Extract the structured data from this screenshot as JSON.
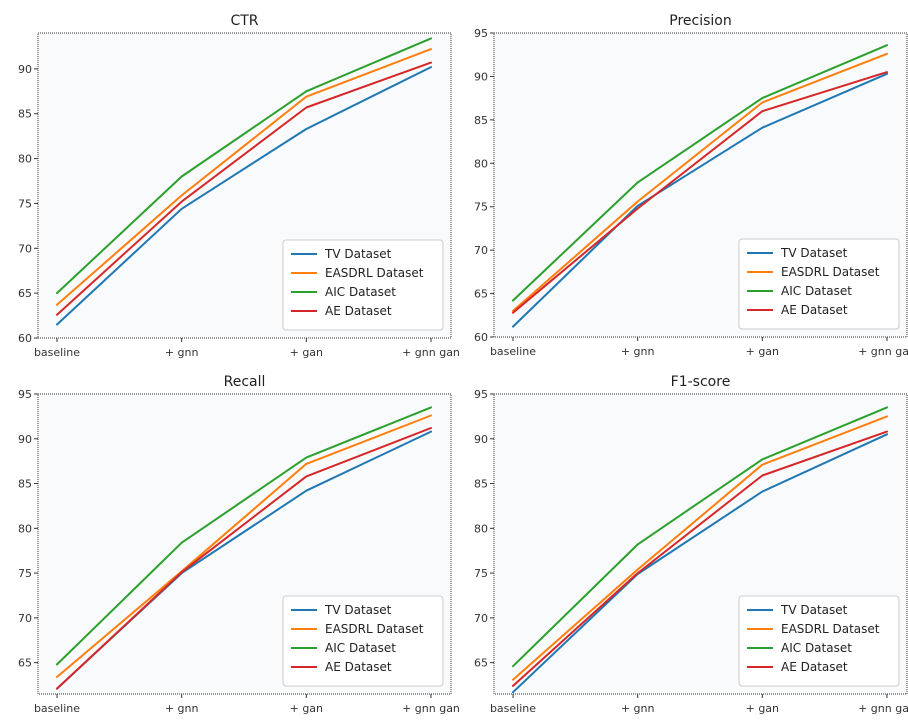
{
  "chart_data": [
    {
      "type": "line",
      "title": "CTR",
      "xlabel": "",
      "ylabel": "",
      "categories": [
        "baseline",
        "+ gnn",
        "+ gan",
        "+ gnn gan"
      ],
      "ylim": [
        60,
        94
      ],
      "yticks": [
        60,
        65,
        70,
        75,
        80,
        85,
        90
      ],
      "grid": false,
      "legend_position": "lower-right",
      "series": [
        {
          "name": "TV Dataset",
          "color": "#1f77b4",
          "values": [
            61.5,
            74.4,
            83.3,
            90.2
          ]
        },
        {
          "name": "EASDRL Dataset",
          "color": "#ff7f0e",
          "values": [
            63.7,
            75.9,
            86.9,
            92.2
          ]
        },
        {
          "name": "AIC Dataset",
          "color": "#2ca02c",
          "values": [
            65.0,
            78.0,
            87.5,
            93.4
          ]
        },
        {
          "name": "AE Dataset",
          "color": "#d62728",
          "values": [
            62.6,
            75.2,
            85.7,
            90.7
          ]
        }
      ]
    },
    {
      "type": "line",
      "title": "Precision",
      "xlabel": "",
      "ylabel": "",
      "categories": [
        "baseline",
        "+ gnn",
        "+ gan",
        "+ gnn gan"
      ],
      "ylim": [
        60,
        95
      ],
      "yticks": [
        60,
        65,
        70,
        75,
        80,
        85,
        90,
        95
      ],
      "grid": false,
      "legend_position": "lower-right",
      "series": [
        {
          "name": "TV Dataset",
          "color": "#1f77b4",
          "values": [
            61.2,
            75.1,
            84.1,
            90.3
          ]
        },
        {
          "name": "EASDRL Dataset",
          "color": "#ff7f0e",
          "values": [
            63.0,
            75.6,
            87.0,
            92.6
          ]
        },
        {
          "name": "AIC Dataset",
          "color": "#2ca02c",
          "values": [
            64.2,
            77.8,
            87.5,
            93.6
          ]
        },
        {
          "name": "AE Dataset",
          "color": "#d62728",
          "values": [
            62.8,
            74.8,
            86.0,
            90.5
          ]
        }
      ]
    },
    {
      "type": "line",
      "title": "Recall",
      "xlabel": "",
      "ylabel": "",
      "categories": [
        "baseline",
        "+ gnn",
        "+ gan",
        "+ gnn gan"
      ],
      "ylim": [
        61.5,
        95
      ],
      "yticks": [
        65,
        70,
        75,
        80,
        85,
        90,
        95
      ],
      "grid": false,
      "legend_position": "lower-right",
      "series": [
        {
          "name": "TV Dataset",
          "color": "#1f77b4",
          "values": [
            62.1,
            75.0,
            84.2,
            90.8
          ]
        },
        {
          "name": "EASDRL Dataset",
          "color": "#ff7f0e",
          "values": [
            63.4,
            75.2,
            87.2,
            92.6
          ]
        },
        {
          "name": "AIC Dataset",
          "color": "#2ca02c",
          "values": [
            64.8,
            78.4,
            87.9,
            93.5
          ]
        },
        {
          "name": "AE Dataset",
          "color": "#d62728",
          "values": [
            62.1,
            75.1,
            85.8,
            91.2
          ]
        }
      ]
    },
    {
      "type": "line",
      "title": "F1-score",
      "xlabel": "",
      "ylabel": "",
      "categories": [
        "baseline",
        "+ gnn",
        "+ gan",
        "+ gnn gan"
      ],
      "ylim": [
        61.5,
        95
      ],
      "yticks": [
        65,
        70,
        75,
        80,
        85,
        90,
        95
      ],
      "grid": false,
      "legend_position": "lower-right",
      "series": [
        {
          "name": "TV Dataset",
          "color": "#1f77b4",
          "values": [
            61.7,
            74.9,
            84.1,
            90.5
          ]
        },
        {
          "name": "EASDRL Dataset",
          "color": "#ff7f0e",
          "values": [
            63.1,
            75.4,
            87.1,
            92.5
          ]
        },
        {
          "name": "AIC Dataset",
          "color": "#2ca02c",
          "values": [
            64.6,
            78.2,
            87.7,
            93.5
          ]
        },
        {
          "name": "AE Dataset",
          "color": "#d62728",
          "values": [
            62.4,
            75.0,
            85.9,
            90.8
          ]
        }
      ]
    }
  ]
}
